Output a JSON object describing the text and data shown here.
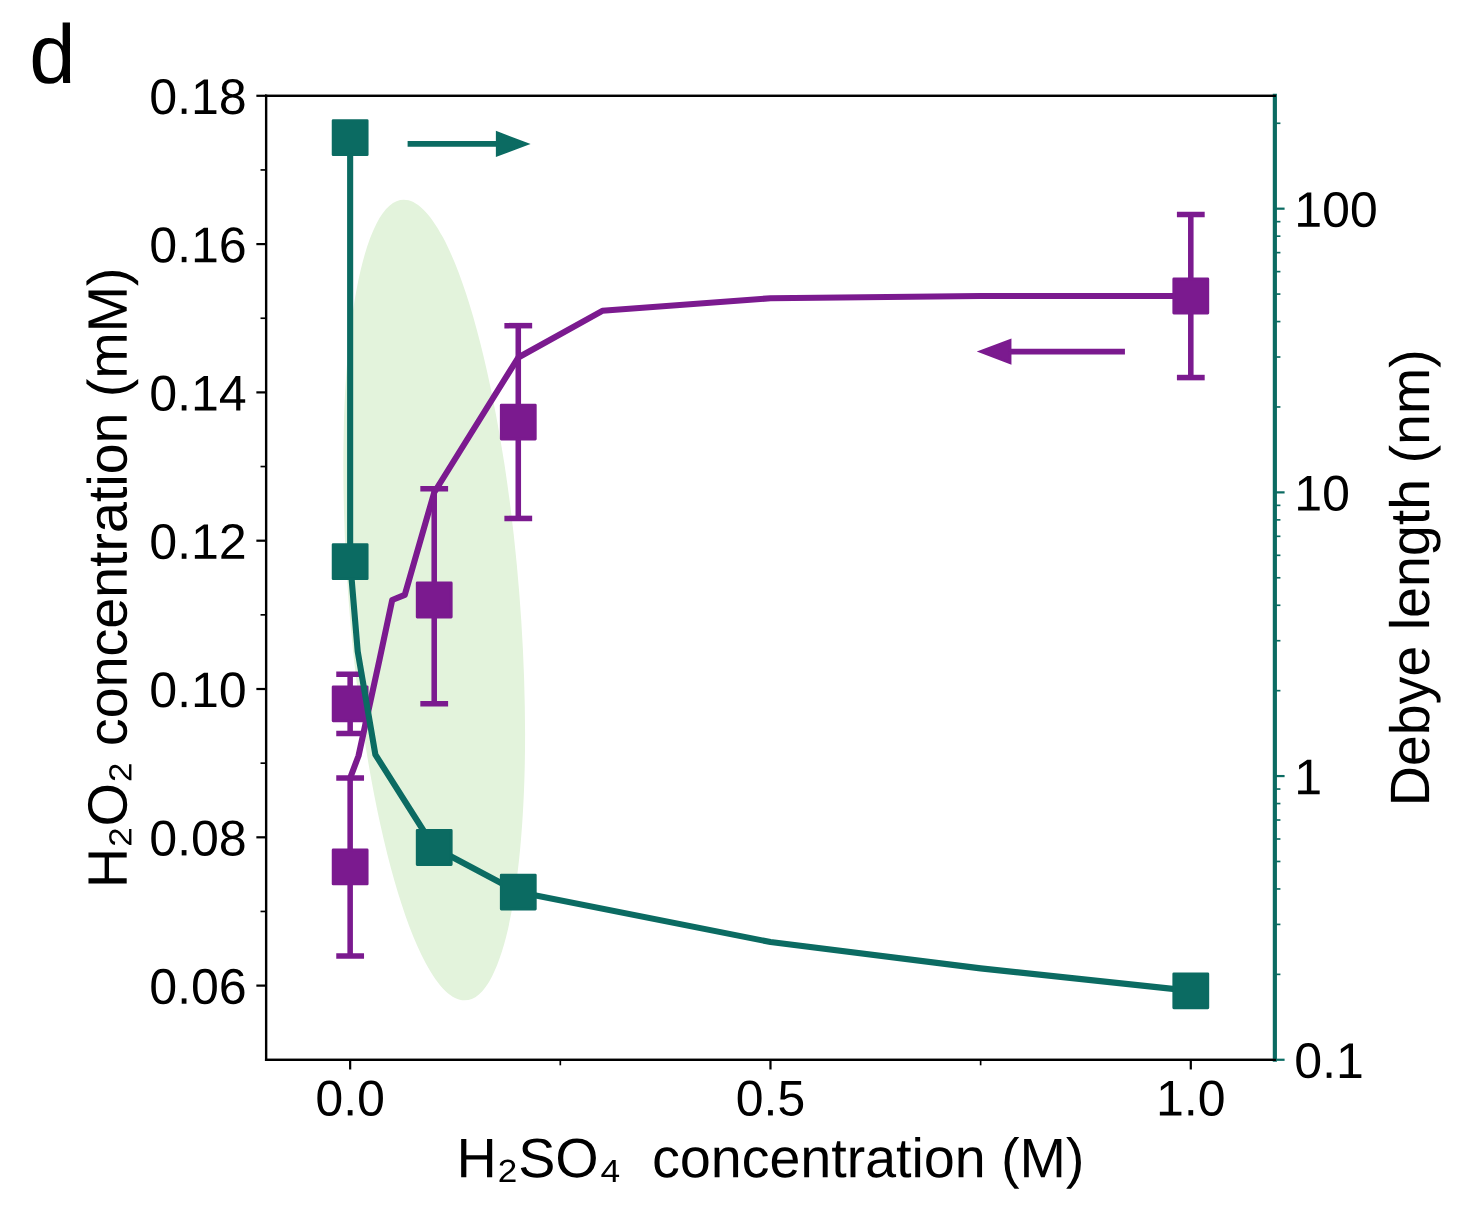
{
  "chart_data": {
    "type": "scatter",
    "title": "d",
    "xlabel": "H₂SO₄  concentration (M)",
    "ylabel": "H₂O₂ concentration (mM)",
    "y2label": "Debye length (nm)",
    "xlim": [
      -0.1,
      1.1
    ],
    "xticks": [
      {
        "value": 0,
        "label": "0.0"
      },
      {
        "value": 0.5,
        "label": "0.5"
      },
      {
        "value": 1,
        "label": "1.0"
      }
    ],
    "ylim": [
      0.05,
      0.18
    ],
    "yticks": [
      0.06,
      0.08,
      {
        "value": 0.1,
        "label": "0.10"
      },
      0.12,
      0.14,
      0.16,
      0.18
    ],
    "y2lim": [
      0.1,
      250
    ],
    "y2ticks": [
      0.1,
      1,
      10,
      100
    ],
    "log": "y2",
    "grid": false,
    "series": [
      {
        "type": "line",
        "color": "#7b1a8f",
        "axis": "y",
        "marker": "none",
        "line_style": "solid",
        "x": [
          0.0,
          0.01,
          0.035,
          0.05,
          0.065,
          0.1,
          0.2,
          0.3,
          0.5,
          0.75,
          1.0
        ],
        "values": [
          0.088,
          0.091,
          0.104,
          0.112,
          0.1127,
          0.1265,
          0.1447,
          0.151,
          0.1527,
          0.153,
          0.153
        ]
      },
      {
        "color": "#7b1a8f",
        "axis": "y",
        "marker": "square",
        "x": [
          0.0,
          0.0,
          0.1,
          0.2,
          1.0
        ],
        "values": [
          0.098,
          0.076,
          0.112,
          0.136,
          0.153
        ],
        "errors": [
          [
            0.094,
            0.102
          ],
          [
            0.064,
            0.088
          ],
          [
            0.098,
            0.127
          ],
          [
            0.123,
            0.149
          ],
          [
            0.142,
            0.164
          ]
        ]
      },
      {
        "type": "line",
        "color": "#0b6b62",
        "axis": "y2",
        "marker": "none",
        "line_style": "solid",
        "x": [
          0.0,
          0.0,
          0.009,
          0.03,
          0.1,
          0.2,
          0.5,
          0.75,
          1.0
        ],
        "values": [
          178,
          5.7,
          2.75,
          1.19,
          0.56,
          0.39,
          0.26,
          0.21,
          0.175
        ]
      },
      {
        "color": "#0b6b62",
        "axis": "y2",
        "marker": "square",
        "x": [
          0.0,
          0.0,
          0.1,
          0.2,
          1.0
        ],
        "values": [
          178,
          5.7,
          0.56,
          0.39,
          0.175
        ]
      }
    ]
  }
}
